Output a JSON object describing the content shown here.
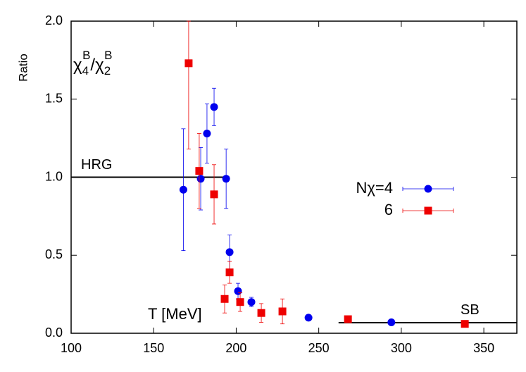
{
  "chart_data": {
    "type": "scatter",
    "xlabel": "T [MeV]",
    "ylabel": "Ratio",
    "ratio_label": [
      "χ",
      "4",
      "B",
      "/χ",
      "2",
      "B"
    ],
    "xlim": [
      100,
      370
    ],
    "ylim": [
      0,
      2
    ],
    "xticks": [
      100,
      150,
      200,
      250,
      300,
      350
    ],
    "yticks": [
      {
        "value": 0,
        "label": "0.0"
      },
      {
        "value": 0.5,
        "label": "0.5"
      },
      {
        "value": 1,
        "label": "1.0"
      },
      {
        "value": 1.5,
        "label": "1.5"
      },
      {
        "value": 2,
        "label": "2.0"
      }
    ],
    "reference_lines": [
      {
        "label": "HRG",
        "y": 1.0,
        "x": [
          100,
          196
        ]
      },
      {
        "label": "SB",
        "y": 0.068,
        "x": [
          262,
          370
        ]
      }
    ],
    "series": [
      {
        "name": "Nχ=4",
        "color": "#0000ee",
        "marker": "circle",
        "x": [
          168,
          178.5,
          182.3,
          186.6,
          193.9,
          196,
          201.1,
          209.2,
          243.8,
          294
        ],
        "values": [
          0.92,
          0.99,
          1.28,
          1.45,
          0.99,
          0.52,
          0.27,
          0.2,
          0.1,
          0.07
        ],
        "errors": [
          0.39,
          0.2,
          0.19,
          0.12,
          0.19,
          0.11,
          0.05,
          0.03,
          0.01,
          0.01
        ]
      },
      {
        "name": "6",
        "color": "#ee0000",
        "marker": "square",
        "x": [
          171.2,
          177.6,
          186.6,
          193,
          196,
          202.4,
          215.2,
          228,
          267.7,
          338.5
        ],
        "values": [
          1.73,
          1.04,
          0.89,
          0.22,
          0.39,
          0.2,
          0.13,
          0.14,
          0.09,
          0.06
        ],
        "errors": [
          0.55,
          0.24,
          0.19,
          0.09,
          0.07,
          0.06,
          0.06,
          0.08,
          0.01,
          0.01
        ]
      }
    ]
  }
}
